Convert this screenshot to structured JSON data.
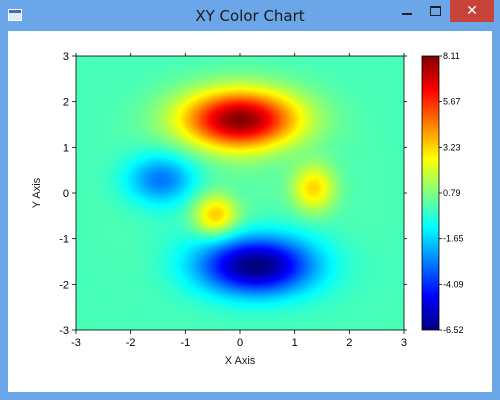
{
  "window": {
    "title": "XY Color Chart",
    "controls": {
      "minimize": "—",
      "maximize": "☐",
      "close": "✕"
    },
    "app_icon": "window-icon"
  },
  "chart_data": {
    "type": "heatmap",
    "title": "",
    "xlabel": "X Axis",
    "ylabel": "Y Axis",
    "xlim": [
      -3,
      3
    ],
    "ylim": [
      -3,
      3
    ],
    "x_ticks": [
      "-3",
      "-2",
      "-1",
      "0",
      "1",
      "2",
      "3"
    ],
    "y_ticks": [
      "3",
      "2",
      "1",
      "0",
      "-1",
      "-2",
      "-3"
    ],
    "colorbar": {
      "min": -6.52,
      "max": 8.11,
      "tick_labels": [
        "8.11",
        "5.67",
        "3.23",
        "0.79",
        "-1.65",
        "-4.09",
        "-6.52"
      ],
      "colors": [
        "#00007f",
        "#0000ff",
        "#0080ff",
        "#00ffff",
        "#80ff80",
        "#ffff00",
        "#ff8000",
        "#ff0000",
        "#7f0000"
      ]
    },
    "features": [
      {
        "x": 0.0,
        "y": 1.6,
        "z": 8.11
      },
      {
        "x": 0.3,
        "y": -1.6,
        "z": -6.52
      },
      {
        "x": -1.45,
        "y": 0.3,
        "z": -2.9
      },
      {
        "x": 1.35,
        "y": 0.1,
        "z": 3.3
      },
      {
        "x": -0.45,
        "y": -0.5,
        "z": 3.4
      }
    ],
    "grid": false,
    "legend": "colorbar-right"
  }
}
